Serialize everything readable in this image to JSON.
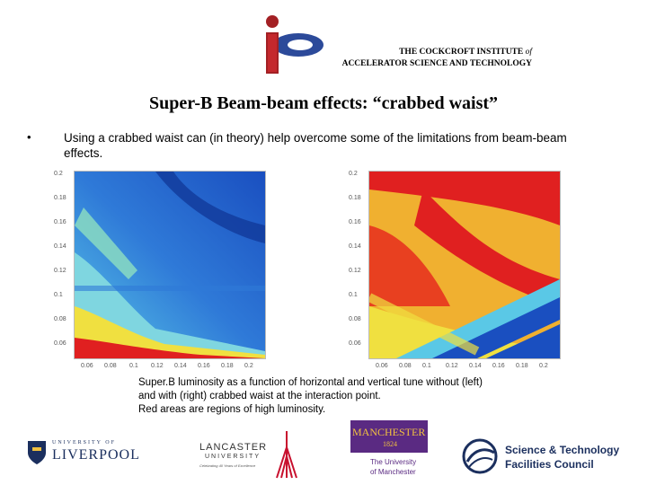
{
  "header": {
    "institute_line1": "THE COCKCROFT INSTITUTE",
    "institute_of": "of",
    "institute_line2": "ACCELERATOR SCIENCE AND TECHNOLOGY"
  },
  "slide": {
    "title": "Super-B Beam-beam effects: “crabbed waist”",
    "bullet_symbol": "•",
    "bullet_text": "Using a crabbed waist can (in theory) help overcome some of the limitations from beam-beam effects."
  },
  "plots": {
    "left": {
      "y_ticks": [
        "0.2",
        "0.18",
        "0.16",
        "0.14",
        "0.12",
        "0.1",
        "0.08",
        "0.06"
      ],
      "x_ticks": [
        "0.06",
        "0.08",
        "0.1",
        "0.12",
        "0.14",
        "0.16",
        "0.18",
        "0.2"
      ]
    },
    "right": {
      "y_ticks": [
        "0.2",
        "0.18",
        "0.16",
        "0.14",
        "0.12",
        "0.1",
        "0.08",
        "0.06"
      ],
      "x_ticks": [
        "0.06",
        "0.08",
        "0.1",
        "0.12",
        "0.14",
        "0.16",
        "0.18",
        "0.2"
      ]
    }
  },
  "caption": {
    "line1": "Super.B luminosity as a function of horizontal and vertical tune without (left)",
    "line2": "and with (right) crabbed waist at the interaction point.",
    "line3": "Red areas are regions of high luminosity."
  },
  "footer_logos": {
    "liverpool_small": "UNIVERSITY OF",
    "liverpool_big": "LIVERPOOL",
    "lancaster_big": "LANCASTER",
    "lancaster_small": "UNIVERSITY",
    "lancaster_tag": "Celebrating 40 Years of Excellence",
    "manchester_word": "MANCHESTER",
    "manchester_year": "1824",
    "manchester_sub1": "The University",
    "manchester_sub2": "of Manchester",
    "stfc_line1": "Science & Technology",
    "stfc_line2": "Facilities Council"
  },
  "colors": {
    "heat_blue": "#1a4fc0",
    "heat_cyan": "#5ac8e6",
    "heat_yellow": "#f0e040",
    "heat_red": "#e02020",
    "manchester_purple": "#5a2a82",
    "lancaster_red": "#c8102e",
    "stfc_navy": "#1b2f5e"
  }
}
